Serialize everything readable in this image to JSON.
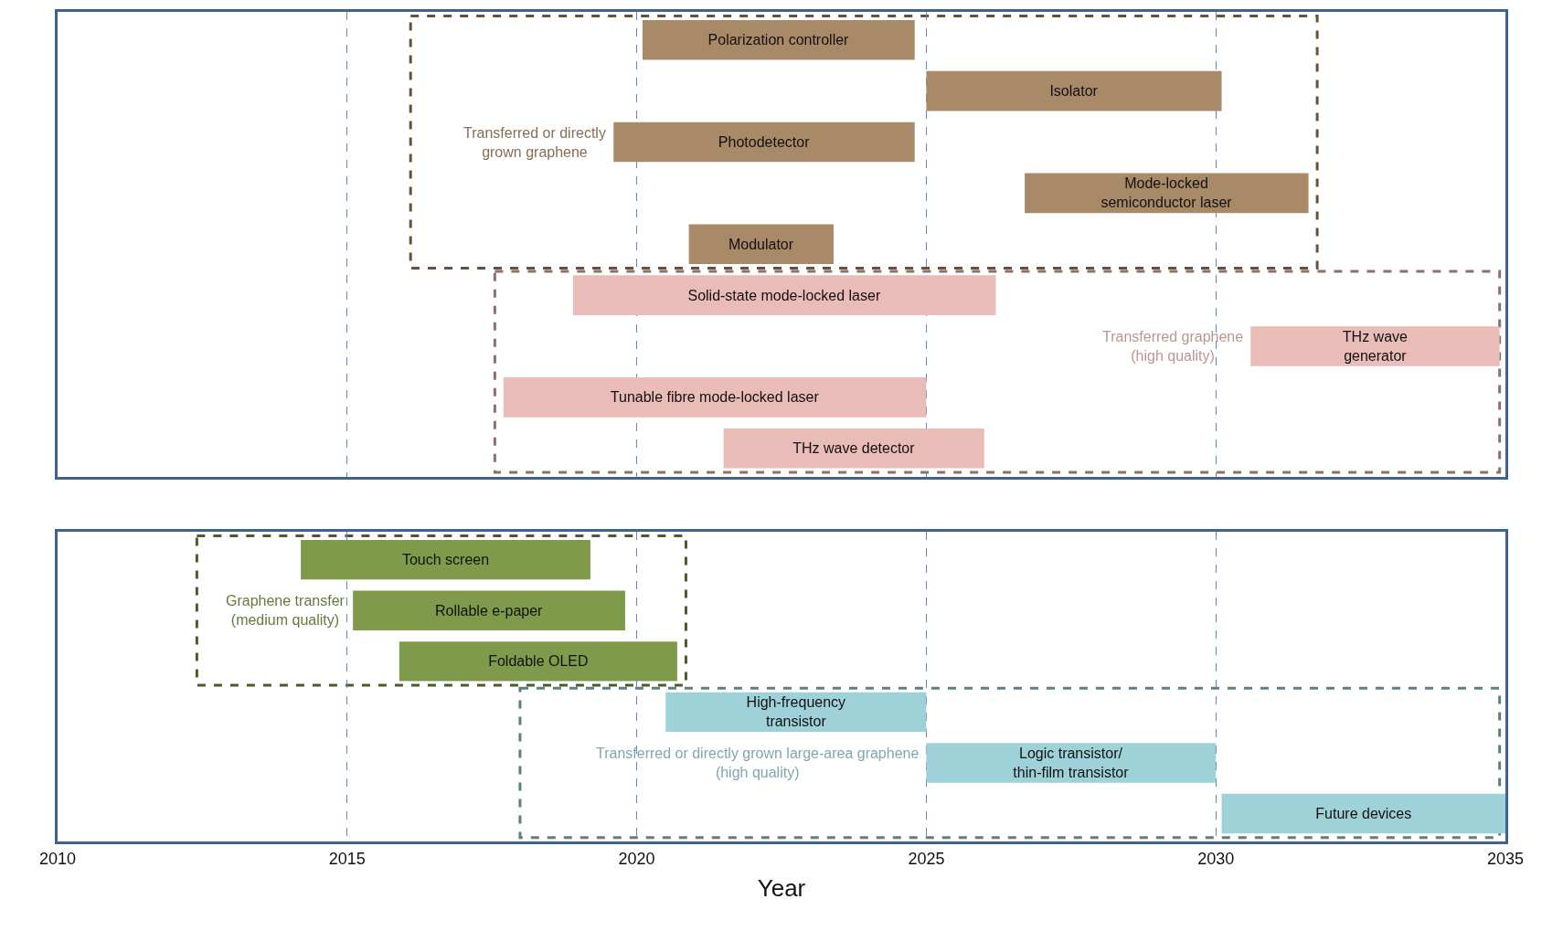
{
  "chart_data": [
    {
      "type": "bar",
      "orientation": "horizontal",
      "categories": [
        "Polarization controller",
        "Isolator",
        "Photodetector",
        "Mode-locked\nsemiconductor laser",
        "Modulator",
        "Solid-state mode-locked laser",
        "THz wave\ngenerator",
        "Tunable fibre mode-locked laser",
        "THz wave detector"
      ],
      "series": [
        {
          "name": "Transferred or directly\ngrown graphene",
          "color": "#a98a68",
          "base": [
            2020.1,
            2025.0,
            2019.6,
            2026.7,
            2020.9,
            null,
            null,
            null,
            null
          ],
          "values": [
            4.7,
            5.1,
            5.2,
            4.9,
            2.5,
            null,
            null,
            null,
            null
          ]
        },
        {
          "name": "Transferred graphene\n(high quality)",
          "color": "#e9bcb7",
          "base": [
            null,
            null,
            null,
            null,
            null,
            2018.9,
            2030.6,
            2017.7,
            2021.5
          ],
          "values": [
            null,
            null,
            null,
            null,
            null,
            7.3,
            4.3,
            7.3,
            4.5
          ]
        }
      ],
      "xlim": [
        2010,
        2035
      ],
      "xticks": [
        2010,
        2015,
        2020,
        2025,
        2030,
        2035
      ],
      "grid": "x",
      "tick_labels": false
    },
    {
      "type": "bar",
      "orientation": "horizontal",
      "categories": [
        "Touch screen",
        "Rollable e-paper",
        "Foldable OLED",
        "High-frequency\ntransistor",
        "Logic transistor/\nthin-film transistor",
        "Future devices"
      ],
      "series": [
        {
          "name": "Graphene transfer\n(medium quality)",
          "color": "#7e9a4a",
          "base": [
            2014.2,
            2015.1,
            2015.9,
            null,
            null,
            null
          ],
          "values": [
            5.0,
            4.7,
            4.8,
            null,
            null,
            null
          ]
        },
        {
          "name": "Transferred or directly grown large-area graphene\n(high quality)",
          "color": "#9fd1d9",
          "base": [
            null,
            null,
            null,
            2020.5,
            2025.0,
            2030.1
          ],
          "values": [
            null,
            null,
            null,
            4.5,
            5.0,
            4.9
          ]
        }
      ],
      "xlim": [
        2010,
        2035
      ],
      "xticks": [
        2010,
        2015,
        2020,
        2025,
        2030,
        2035
      ],
      "xlabel": "Year",
      "grid": "x",
      "tick_labels": "x"
    }
  ]
}
